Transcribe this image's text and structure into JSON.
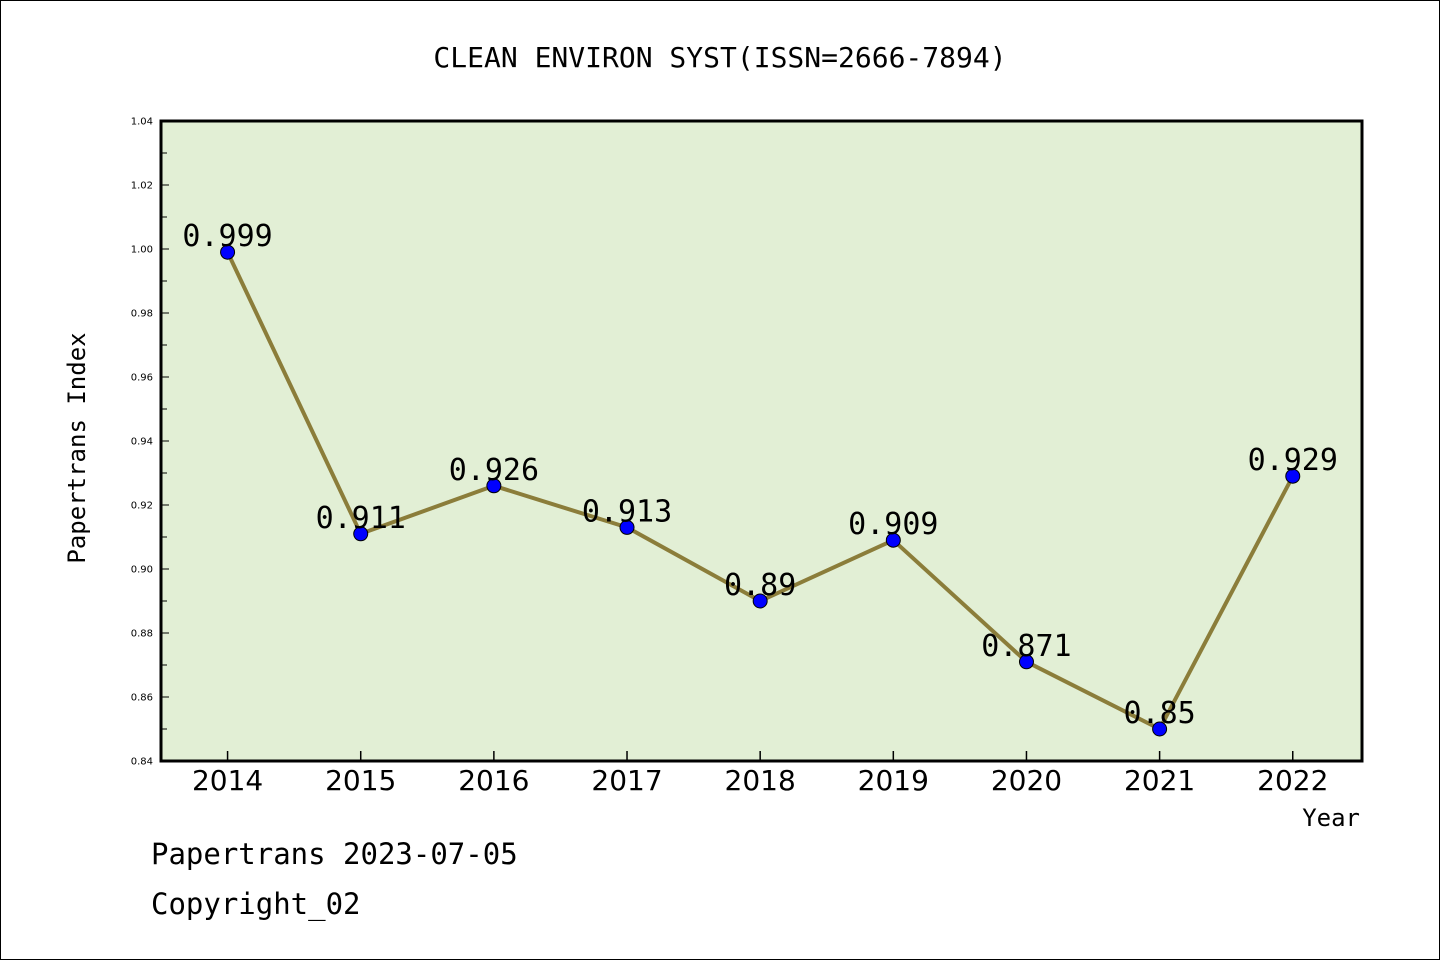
{
  "chart_data": {
    "type": "line",
    "title": "CLEAN ENVIRON SYST(ISSN=2666-7894)",
    "xlabel": "Year",
    "ylabel": "Papertrans Index",
    "categories": [
      "2014",
      "2015",
      "2016",
      "2017",
      "2018",
      "2019",
      "2020",
      "2021",
      "2022"
    ],
    "series": [
      {
        "values": [
          0.999,
          0.911,
          0.926,
          0.913,
          0.89,
          0.909,
          0.871,
          0.85,
          0.929
        ],
        "labels": [
          "0.999",
          "0.911",
          "0.926",
          "0.913",
          "0.89",
          "0.909",
          "0.871",
          "0.85",
          "0.929"
        ]
      }
    ],
    "ylim": [
      0.84,
      1.04
    ],
    "yticks": [
      "0.84",
      "0.86",
      "0.88",
      "0.90",
      "0.92",
      "0.94",
      "0.96",
      "0.98",
      "1.00",
      "1.02",
      "1.04"
    ],
    "grid": false,
    "colors": {
      "plot_background": "#e2efd5",
      "line": "#8b7d3a",
      "marker": "#0000ff"
    }
  },
  "footer": {
    "line1": "Papertrans 2023-07-05",
    "line2": "Copyright_02"
  }
}
